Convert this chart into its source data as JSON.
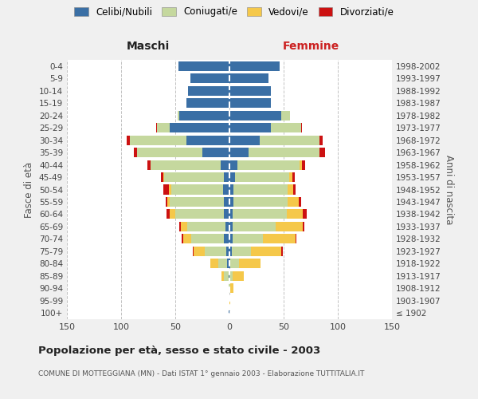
{
  "age_groups": [
    "100+",
    "95-99",
    "90-94",
    "85-89",
    "80-84",
    "75-79",
    "70-74",
    "65-69",
    "60-64",
    "55-59",
    "50-54",
    "45-49",
    "40-44",
    "35-39",
    "30-34",
    "25-29",
    "20-24",
    "15-19",
    "10-14",
    "5-9",
    "0-4"
  ],
  "birth_years": [
    "≤ 1902",
    "1903-1907",
    "1908-1912",
    "1913-1917",
    "1918-1922",
    "1923-1927",
    "1928-1932",
    "1933-1937",
    "1938-1942",
    "1943-1947",
    "1948-1952",
    "1953-1957",
    "1958-1962",
    "1963-1967",
    "1968-1972",
    "1973-1977",
    "1978-1982",
    "1983-1987",
    "1988-1992",
    "1993-1997",
    "1998-2002"
  ],
  "maschi_celibi": [
    1,
    0,
    0,
    1,
    2,
    3,
    5,
    4,
    5,
    5,
    6,
    5,
    8,
    25,
    40,
    55,
    46,
    40,
    38,
    36,
    47
  ],
  "maschi_coniugati": [
    0,
    0,
    1,
    4,
    8,
    20,
    30,
    35,
    45,
    50,
    48,
    55,
    65,
    60,
    52,
    12,
    2,
    0,
    0,
    0,
    0
  ],
  "maschi_vedovi": [
    0,
    0,
    0,
    2,
    8,
    10,
    8,
    6,
    5,
    2,
    2,
    1,
    0,
    0,
    0,
    0,
    0,
    0,
    0,
    0,
    0
  ],
  "maschi_divorziati": [
    0,
    0,
    0,
    0,
    0,
    1,
    1,
    1,
    3,
    2,
    5,
    2,
    3,
    3,
    3,
    1,
    0,
    0,
    0,
    0,
    0
  ],
  "femmine_nubili": [
    0,
    0,
    0,
    0,
    1,
    2,
    3,
    3,
    3,
    4,
    4,
    5,
    7,
    18,
    28,
    38,
    48,
    38,
    38,
    36,
    46
  ],
  "femmine_coniugate": [
    0,
    0,
    1,
    3,
    8,
    18,
    28,
    40,
    50,
    50,
    50,
    50,
    58,
    65,
    55,
    28,
    8,
    0,
    0,
    0,
    0
  ],
  "femmine_vedove": [
    0,
    1,
    3,
    10,
    20,
    28,
    30,
    25,
    15,
    10,
    5,
    3,
    2,
    0,
    0,
    0,
    0,
    0,
    0,
    0,
    0
  ],
  "femmine_divorziate": [
    0,
    0,
    0,
    0,
    0,
    1,
    1,
    1,
    3,
    2,
    2,
    2,
    3,
    5,
    3,
    1,
    0,
    0,
    0,
    0,
    0
  ],
  "color_celibi": "#3a6fa5",
  "color_coniugati": "#c5d89e",
  "color_vedovi": "#f5c84a",
  "color_divorziati": "#cc1111",
  "title": "Popolazione per età, sesso e stato civile - 2003",
  "subtitle": "COMUNE DI MOTTEGGIANA (MN) - Dati ISTAT 1° gennaio 2003 - Elaborazione TUTTITALIA.IT",
  "label_maschi": "Maschi",
  "label_femmine": "Femmine",
  "label_fasce": "Fasce di età",
  "label_anni": "Anni di nascita",
  "legend_labels": [
    "Celibi/Nubili",
    "Coniugati/e",
    "Vedovi/e",
    "Divorziati/e"
  ],
  "xlim": 150,
  "bg_color": "#f0f0f0",
  "plot_bg": "#ffffff"
}
